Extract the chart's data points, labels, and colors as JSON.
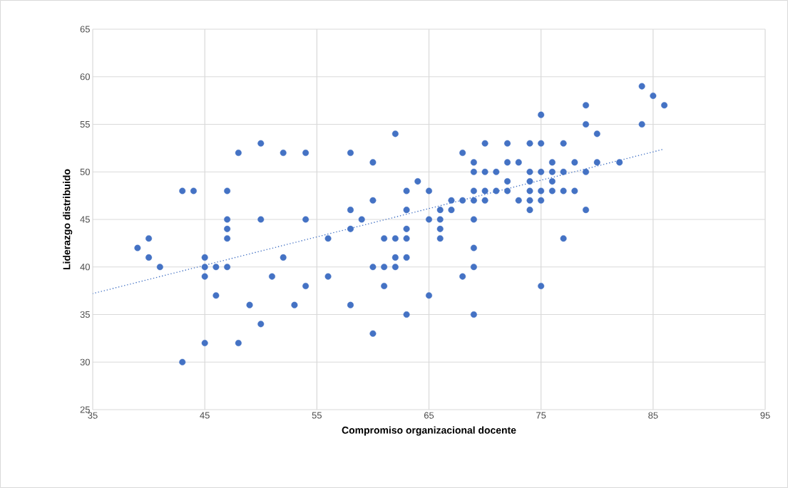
{
  "chart_data": {
    "type": "scatter",
    "xlabel": "Compromiso organizacional docente",
    "ylabel": "Liderazgo distribuido",
    "xlim": [
      35,
      95
    ],
    "xticks": [
      35,
      45,
      55,
      65,
      75,
      85,
      95
    ],
    "ylim": [
      25,
      65
    ],
    "yticks": [
      25,
      30,
      35,
      40,
      45,
      50,
      55,
      60,
      65
    ],
    "grid": true,
    "series": [
      {
        "color": "#4472c4",
        "marker": "circle",
        "x": [
          39,
          40,
          40,
          41,
          43,
          44,
          43,
          45,
          45,
          45,
          45,
          46,
          46,
          47,
          47,
          47,
          47,
          47,
          48,
          48,
          49,
          50,
          50,
          50,
          51,
          52,
          52,
          53,
          54,
          54,
          54,
          56,
          56,
          58,
          58,
          58,
          58,
          59,
          60,
          60,
          60,
          60,
          61,
          61,
          61,
          62,
          62,
          62,
          62,
          63,
          63,
          63,
          63,
          63,
          63,
          64,
          65,
          65,
          65,
          66,
          66,
          66,
          66,
          67,
          67,
          68,
          68,
          68,
          69,
          69,
          69,
          69,
          69,
          69,
          69,
          69,
          70,
          70,
          70,
          70,
          71,
          71,
          72,
          72,
          72,
          72,
          73,
          73,
          74,
          74,
          74,
          74,
          74,
          74,
          75,
          75,
          75,
          75,
          75,
          75,
          76,
          76,
          76,
          76,
          77,
          77,
          77,
          77,
          78,
          78,
          79,
          79,
          79,
          79,
          80,
          80,
          82,
          84,
          84,
          85,
          86
        ],
        "values": [
          42,
          43,
          41,
          40,
          48,
          48,
          30,
          41,
          40,
          39,
          32,
          40,
          37,
          48,
          45,
          44,
          43,
          40,
          52,
          32,
          36,
          53,
          45,
          34,
          39,
          52,
          41,
          36,
          52,
          45,
          38,
          43,
          39,
          52,
          46,
          44,
          36,
          45,
          51,
          47,
          40,
          33,
          43,
          40,
          38,
          54,
          43,
          41,
          40,
          48,
          46,
          44,
          43,
          41,
          35,
          49,
          48,
          45,
          37,
          46,
          45,
          44,
          43,
          47,
          46,
          52,
          47,
          39,
          51,
          50,
          48,
          47,
          45,
          42,
          40,
          35,
          53,
          50,
          48,
          47,
          50,
          48,
          53,
          51,
          49,
          48,
          51,
          47,
          53,
          50,
          49,
          48,
          47,
          46,
          56,
          53,
          50,
          48,
          47,
          38,
          51,
          50,
          49,
          48,
          53,
          50,
          48,
          43,
          51,
          48,
          57,
          55,
          50,
          46,
          54,
          51,
          51,
          59,
          55,
          58,
          57
        ]
      },
      {
        "type": "line",
        "color": "#4472c4",
        "x": [
          35,
          86
        ],
        "values": [
          37.2,
          52.4
        ],
        "marker": "none",
        "line_style": "dotted"
      }
    ]
  }
}
